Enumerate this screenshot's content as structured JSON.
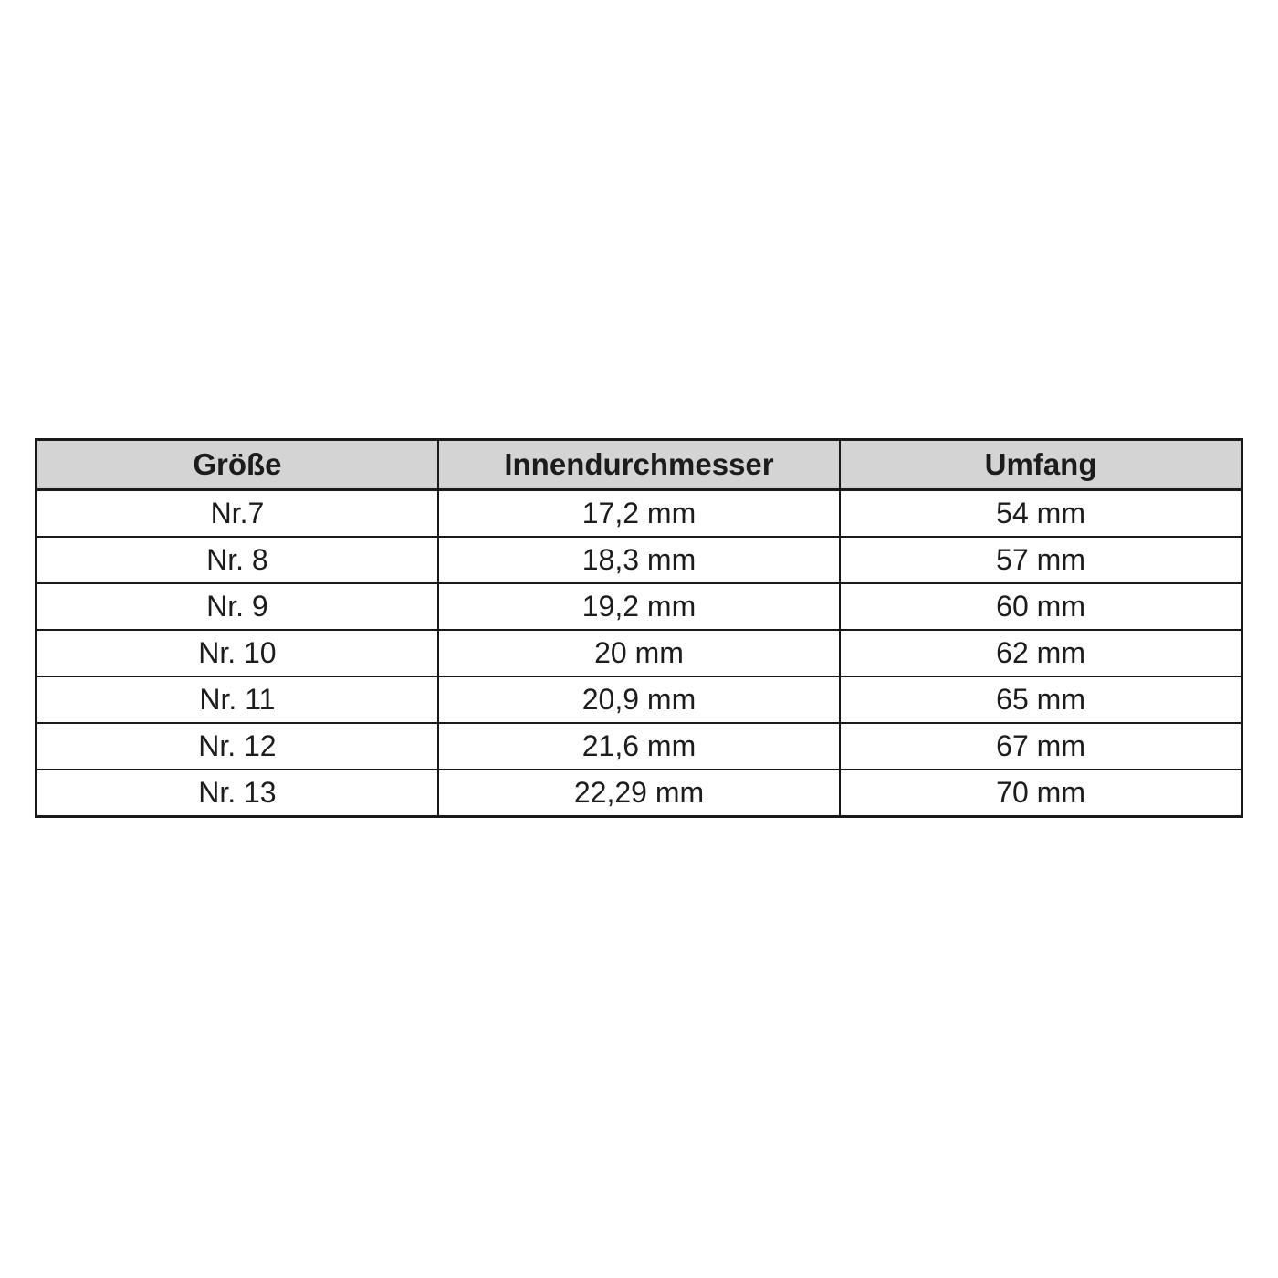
{
  "colors": {
    "page_bg": "#ffffff",
    "header_bg": "#d4d4d4",
    "border": "#1a1a1a",
    "text": "#1c1c1c"
  },
  "table": {
    "headers": [
      "Größe",
      "Innendurchmesser",
      "Umfang"
    ],
    "rows": [
      {
        "size": "Nr.7",
        "diameter": "17,2 mm",
        "circumference": "54 mm"
      },
      {
        "size": "Nr. 8",
        "diameter": "18,3 mm",
        "circumference": "57 mm"
      },
      {
        "size": "Nr. 9",
        "diameter": "19,2 mm",
        "circumference": "60 mm"
      },
      {
        "size": "Nr. 10",
        "diameter": "20 mm",
        "circumference": "62 mm"
      },
      {
        "size": "Nr. 11",
        "diameter": "20,9 mm",
        "circumference": "65 mm"
      },
      {
        "size": "Nr. 12",
        "diameter": "21,6 mm",
        "circumference": "67 mm"
      },
      {
        "size": "Nr. 13",
        "diameter": "22,29 mm",
        "circumference": "70 mm"
      }
    ]
  }
}
